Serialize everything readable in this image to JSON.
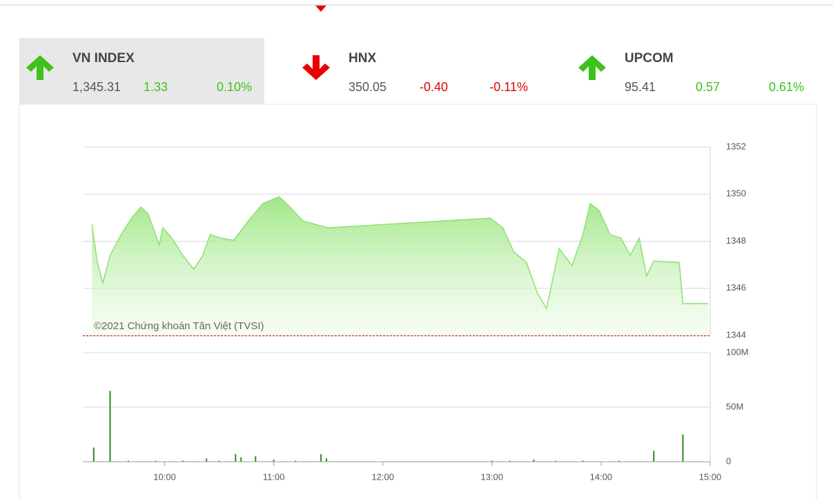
{
  "indices": [
    {
      "name": "VN INDEX",
      "value": "1,345.31",
      "change": "1.33",
      "percent": "0.10%",
      "direction": "up",
      "color": "#3cc21a"
    },
    {
      "name": "HNX",
      "value": "350.05",
      "change": "-0.40",
      "percent": "-0.11%",
      "direction": "down",
      "color": "#e60000"
    },
    {
      "name": "UPCOM",
      "value": "95.41",
      "change": "0.57",
      "percent": "0.61%",
      "direction": "up",
      "color": "#3cc21a"
    }
  ],
  "selected_index": 0,
  "chart_data": [
    {
      "type": "area",
      "annotation": "©2021 Chứng khoán Tân Việt (TVSI)",
      "x": [
        560,
        563,
        566,
        570,
        576,
        582,
        587,
        591,
        597,
        599,
        604,
        610,
        616,
        621,
        625,
        631,
        638,
        646,
        654,
        663,
        669,
        676,
        690,
        779,
        786,
        792,
        799,
        805,
        810,
        813,
        817,
        824,
        830,
        834,
        839,
        845,
        851,
        856,
        861,
        865,
        869,
        883,
        885,
        899
      ],
      "values": [
        1348.72,
        1347.1,
        1346.23,
        1347.4,
        1348.28,
        1349.0,
        1349.45,
        1349.16,
        1347.84,
        1348.57,
        1348.13,
        1347.4,
        1346.81,
        1347.4,
        1348.28,
        1348.13,
        1348.04,
        1348.86,
        1349.6,
        1349.89,
        1349.45,
        1348.86,
        1348.57,
        1348.98,
        1348.57,
        1347.55,
        1347.1,
        1345.79,
        1345.14,
        1346.23,
        1347.69,
        1346.96,
        1348.28,
        1349.6,
        1349.3,
        1348.28,
        1348.13,
        1347.4,
        1348.13,
        1346.52,
        1347.16,
        1347.1,
        1345.35,
        1345.35
      ],
      "color": "#8fdf75",
      "reference": 1343.98,
      "reference_color": "#e00000",
      "xlim": [
        555,
        900
      ],
      "ylim": [
        1344,
        1352
      ],
      "yticks": [
        1344,
        1346,
        1348,
        1350,
        1352
      ],
      "grid": true
    },
    {
      "type": "bar",
      "x": [
        561,
        570,
        580,
        595,
        610,
        623,
        630,
        639,
        642,
        650,
        660,
        672,
        686,
        689,
        780,
        790,
        803,
        815,
        830,
        850,
        869,
        885
      ],
      "values": [
        13000000,
        65000000,
        1000000,
        1000000,
        1000000,
        3000000,
        1000000,
        7000000,
        4000000,
        5000000,
        2000000,
        1000000,
        7000000,
        3000000,
        1000000,
        1000000,
        2000000,
        1000000,
        1000000,
        1000000,
        10000000,
        25000000
      ],
      "color": "#2a8a1a",
      "xlim": [
        555,
        900
      ],
      "ylim": [
        0,
        100000000
      ],
      "yticks": [
        0,
        {
          "value": 50000000,
          "label": "50M"
        },
        {
          "value": 100000000,
          "label": "100M"
        }
      ],
      "xticks": [
        {
          "value": 600,
          "label": "10:00"
        },
        {
          "value": 660,
          "label": "11:00"
        },
        {
          "value": 720,
          "label": "12:00"
        },
        {
          "value": 780,
          "label": "13:00"
        },
        {
          "value": 840,
          "label": "14:00"
        },
        {
          "value": 900,
          "label": "15:00"
        }
      ],
      "grid": true
    }
  ]
}
